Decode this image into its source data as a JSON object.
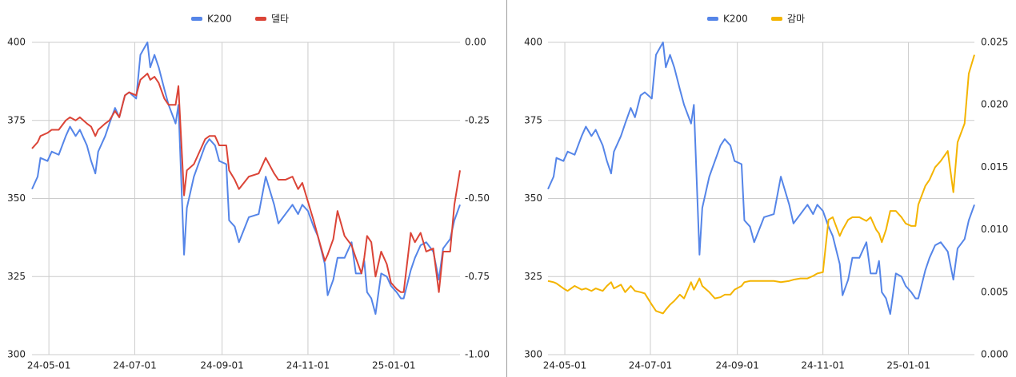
{
  "chart_data": [
    {
      "type": "line",
      "x": [
        "24-04-19",
        "24-04-23",
        "24-04-25",
        "24-04-30",
        "24-05-03",
        "24-05-08",
        "24-05-13",
        "24-05-16",
        "24-05-20",
        "24-05-23",
        "24-05-28",
        "24-05-31",
        "24-06-03",
        "24-06-05",
        "24-06-10",
        "24-06-13",
        "24-06-17",
        "24-06-20",
        "24-06-24",
        "24-06-27",
        "24-07-02",
        "24-07-05",
        "24-07-10",
        "24-07-12",
        "24-07-15",
        "24-07-18",
        "24-07-22",
        "24-07-25",
        "24-07-30",
        "24-08-01",
        "24-08-05",
        "24-08-07",
        "24-08-12",
        "24-08-16",
        "24-08-20",
        "24-08-23",
        "24-08-27",
        "24-08-30",
        "24-09-04",
        "24-09-06",
        "24-09-10",
        "24-09-13",
        "24-09-20",
        "24-09-27",
        "24-10-02",
        "24-10-08",
        "24-10-11",
        "24-10-16",
        "24-10-21",
        "24-10-25",
        "24-10-28",
        "24-11-01",
        "24-11-05",
        "24-11-08",
        "24-11-13",
        "24-11-15",
        "24-11-19",
        "24-11-22",
        "24-11-27",
        "24-12-02",
        "24-12-05",
        "24-12-09",
        "24-12-11",
        "24-12-13",
        "24-12-16",
        "24-12-19",
        "24-12-23",
        "24-12-27",
        "24-12-30",
        "25-01-03",
        "25-01-06",
        "25-01-08",
        "25-01-13",
        "25-01-16",
        "25-01-20",
        "25-01-24",
        "25-01-29",
        "25-02-02",
        "25-02-05",
        "25-02-10",
        "25-02-13",
        "25-02-17"
      ],
      "series": [
        {
          "name": "K200",
          "color": "#5585e8",
          "values": [
            353,
            357,
            363,
            362,
            365,
            364,
            370,
            373,
            370,
            372,
            367,
            362,
            358,
            365,
            370,
            374,
            379,
            376,
            383,
            384,
            382,
            396,
            400,
            392,
            396,
            392,
            385,
            380,
            374,
            380,
            332,
            347,
            357,
            362,
            367,
            369,
            367,
            362,
            361,
            343,
            341,
            336,
            344,
            345,
            357,
            348,
            342,
            345,
            348,
            345,
            348,
            346,
            341,
            338,
            329,
            319,
            324,
            331,
            331,
            336,
            326,
            326,
            330,
            320,
            318,
            313,
            326,
            325,
            322,
            320,
            318,
            318,
            327,
            331,
            335,
            336,
            333,
            324,
            334,
            337,
            343,
            348
          ]
        },
        {
          "name": "델타",
          "color": "#db4437",
          "axis": "y2",
          "values": [
            -0.34,
            -0.32,
            -0.3,
            -0.29,
            -0.28,
            -0.28,
            -0.25,
            -0.24,
            -0.25,
            -0.24,
            -0.26,
            -0.27,
            -0.3,
            -0.28,
            -0.26,
            -0.25,
            -0.22,
            -0.24,
            -0.17,
            -0.16,
            -0.17,
            -0.12,
            -0.1,
            -0.12,
            -0.11,
            -0.13,
            -0.18,
            -0.2,
            -0.2,
            -0.14,
            -0.49,
            -0.41,
            -0.39,
            -0.35,
            -0.31,
            -0.3,
            -0.3,
            -0.33,
            -0.33,
            -0.41,
            -0.44,
            -0.47,
            -0.43,
            -0.42,
            -0.37,
            -0.42,
            -0.44,
            -0.44,
            -0.43,
            -0.47,
            -0.45,
            -0.51,
            -0.57,
            -0.62,
            -0.7,
            -0.68,
            -0.63,
            -0.54,
            -0.62,
            -0.65,
            -0.69,
            -0.74,
            -0.69,
            -0.62,
            -0.64,
            -0.75,
            -0.67,
            -0.71,
            -0.77,
            -0.79,
            -0.8,
            -0.8,
            -0.61,
            -0.64,
            -0.61,
            -0.67,
            -0.66,
            -0.8,
            -0.67,
            -0.67,
            -0.52,
            -0.41
          ]
        }
      ],
      "xlim": [
        "24-04-19",
        "25-02-17"
      ],
      "xticks": [
        "24-05-01",
        "24-07-01",
        "24-09-01",
        "24-11-01",
        "25-01-01"
      ],
      "ylim": [
        300,
        400
      ],
      "yticks": [
        300,
        325,
        350,
        375,
        400
      ],
      "y2lim": [
        -1,
        0
      ],
      "y2ticks": [
        {
          "value": -1,
          "label": "-1.00"
        },
        -0.75,
        {
          "value": -0.5,
          "label": "-0.50"
        },
        -0.25,
        {
          "value": 0,
          "label": "0.00"
        }
      ],
      "grid": true,
      "legend": "top"
    },
    {
      "type": "line",
      "x": [
        "24-04-19",
        "24-04-23",
        "24-04-25",
        "24-04-30",
        "24-05-03",
        "24-05-08",
        "24-05-13",
        "24-05-16",
        "24-05-20",
        "24-05-23",
        "24-05-28",
        "24-05-31",
        "24-06-03",
        "24-06-05",
        "24-06-10",
        "24-06-13",
        "24-06-17",
        "24-06-20",
        "24-06-24",
        "24-06-27",
        "24-07-02",
        "24-07-05",
        "24-07-10",
        "24-07-12",
        "24-07-15",
        "24-07-18",
        "24-07-22",
        "24-07-25",
        "24-07-30",
        "24-08-01",
        "24-08-05",
        "24-08-07",
        "24-08-12",
        "24-08-16",
        "24-08-20",
        "24-08-23",
        "24-08-27",
        "24-08-30",
        "24-09-04",
        "24-09-06",
        "24-09-10",
        "24-09-13",
        "24-09-20",
        "24-09-27",
        "24-10-02",
        "24-10-08",
        "24-10-11",
        "24-10-16",
        "24-10-21",
        "24-10-25",
        "24-10-28",
        "24-11-01",
        "24-11-05",
        "24-11-08",
        "24-11-13",
        "24-11-15",
        "24-11-19",
        "24-11-22",
        "24-11-27",
        "24-12-02",
        "24-12-05",
        "24-12-09",
        "24-12-11",
        "24-12-13",
        "24-12-16",
        "24-12-19",
        "24-12-23",
        "24-12-27",
        "24-12-30",
        "25-01-03",
        "25-01-06",
        "25-01-08",
        "25-01-13",
        "25-01-16",
        "25-01-20",
        "25-01-24",
        "25-01-29",
        "25-02-02",
        "25-02-05",
        "25-02-10",
        "25-02-13",
        "25-02-17"
      ],
      "series": [
        {
          "name": "K200",
          "color": "#5585e8",
          "values": [
            353,
            357,
            363,
            362,
            365,
            364,
            370,
            373,
            370,
            372,
            367,
            362,
            358,
            365,
            370,
            374,
            379,
            376,
            383,
            384,
            382,
            396,
            400,
            392,
            396,
            392,
            385,
            380,
            374,
            380,
            332,
            347,
            357,
            362,
            367,
            369,
            367,
            362,
            361,
            343,
            341,
            336,
            344,
            345,
            357,
            348,
            342,
            345,
            348,
            345,
            348,
            346,
            341,
            338,
            329,
            319,
            324,
            331,
            331,
            336,
            326,
            326,
            330,
            320,
            318,
            313,
            326,
            325,
            322,
            320,
            318,
            318,
            327,
            331,
            335,
            336,
            333,
            324,
            334,
            337,
            343,
            348
          ]
        },
        {
          "name": "감마",
          "color": "#f4b400",
          "axis": "y2",
          "values": [
            0.0059,
            0.0058,
            0.0057,
            0.0053,
            0.0051,
            0.0055,
            0.0052,
            0.0053,
            0.0051,
            0.0053,
            0.0051,
            0.0055,
            0.0058,
            0.0053,
            0.0056,
            0.005,
            0.0055,
            0.0051,
            0.005,
            0.0049,
            0.004,
            0.0035,
            0.0033,
            0.0036,
            0.004,
            0.0043,
            0.0048,
            0.0045,
            0.0058,
            0.0052,
            0.0061,
            0.0055,
            0.005,
            0.0045,
            0.0046,
            0.0048,
            0.0048,
            0.0052,
            0.0055,
            0.0058,
            0.0059,
            0.0059,
            0.0059,
            0.0059,
            0.0058,
            0.0059,
            0.006,
            0.0061,
            0.0061,
            0.0063,
            0.0065,
            0.0066,
            0.0108,
            0.011,
            0.0095,
            0.01,
            0.0108,
            0.011,
            0.011,
            0.0107,
            0.011,
            0.01,
            0.0097,
            0.009,
            0.01,
            0.0115,
            0.0115,
            0.011,
            0.0105,
            0.0103,
            0.0103,
            0.012,
            0.0135,
            0.014,
            0.015,
            0.0155,
            0.0163,
            0.013,
            0.017,
            0.0185,
            0.0225,
            0.024
          ]
        }
      ],
      "xlim": [
        "24-04-19",
        "25-02-17"
      ],
      "xticks": [
        "24-05-01",
        "24-07-01",
        "24-09-01",
        "24-11-01",
        "25-01-01"
      ],
      "ylim": [
        300,
        400
      ],
      "yticks": [
        300,
        325,
        350,
        375,
        400
      ],
      "y2lim": [
        0,
        0.025
      ],
      "y2ticks": [
        {
          "value": 0,
          "label": "0.000"
        },
        0.005,
        {
          "value": 0.01,
          "label": "0.010"
        },
        0.015,
        {
          "value": 0.02,
          "label": "0.020"
        },
        0.025
      ],
      "grid": true,
      "legend": "top"
    }
  ]
}
